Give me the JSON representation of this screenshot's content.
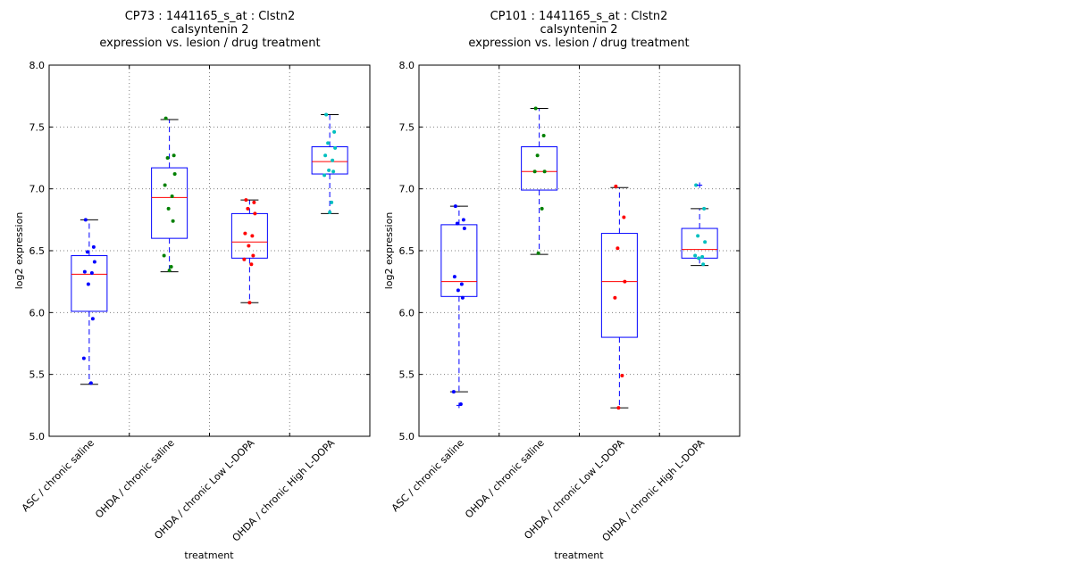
{
  "colors": {
    "box": "#0000ff",
    "median": "#ff0000",
    "whisker": "#0000ff",
    "cap": "#000000",
    "grid": "#808080",
    "frame": "#000000",
    "groups": [
      "#0000ff",
      "#008000",
      "#ff0000",
      "#00bfbf"
    ]
  },
  "chart_data": [
    {
      "type": "box",
      "title": [
        "CP73 : 1441165_s_at : Clstn2",
        "calsyntenin 2",
        "expression vs. lesion / drug treatment"
      ],
      "xlabel": "treatment",
      "ylabel": "log2 expression",
      "ylim": [
        5.0,
        8.0
      ],
      "yticks": [
        "5.0",
        "5.5",
        "6.0",
        "6.5",
        "7.0",
        "7.5",
        "8.0"
      ],
      "grid": true,
      "categories": [
        "ASC / chronic saline",
        "OHDA / chronic saline",
        "OHDA / chronic Low L-DOPA",
        "OHDA / chronic High L-DOPA"
      ],
      "boxes": [
        {
          "q1": 6.01,
          "median": 6.31,
          "q3": 6.46,
          "whisker_low": 5.42,
          "whisker_high": 6.75,
          "outliers": [],
          "points": [
            6.75,
            6.53,
            6.49,
            6.41,
            6.33,
            6.32,
            6.23,
            5.95,
            5.63,
            5.43
          ]
        },
        {
          "q1": 6.6,
          "median": 6.93,
          "q3": 7.17,
          "whisker_low": 6.33,
          "whisker_high": 7.56,
          "outliers": [],
          "points": [
            7.57,
            7.27,
            7.25,
            7.12,
            7.03,
            6.94,
            6.84,
            6.74,
            6.46,
            6.37,
            6.34
          ]
        },
        {
          "q1": 6.44,
          "median": 6.57,
          "q3": 6.8,
          "whisker_low": 6.08,
          "whisker_high": 6.91,
          "outliers": [],
          "points": [
            6.91,
            6.89,
            6.84,
            6.8,
            6.64,
            6.62,
            6.54,
            6.46,
            6.43,
            6.39,
            6.08
          ]
        },
        {
          "q1": 7.12,
          "median": 7.22,
          "q3": 7.34,
          "whisker_low": 6.8,
          "whisker_high": 7.6,
          "outliers": [],
          "points": [
            7.6,
            7.46,
            7.37,
            7.33,
            7.27,
            7.23,
            7.15,
            7.14,
            7.11,
            6.89,
            6.81
          ]
        }
      ]
    },
    {
      "type": "box",
      "title": [
        "CP101 : 1441165_s_at : Clstn2",
        "calsyntenin 2",
        "expression vs. lesion / drug treatment"
      ],
      "xlabel": "treatment",
      "ylabel": "log2 expression",
      "ylim": [
        5.0,
        8.0
      ],
      "yticks": [
        "5.0",
        "5.5",
        "6.0",
        "6.5",
        "7.0",
        "7.5",
        "8.0"
      ],
      "grid": true,
      "categories": [
        "ASC / chronic saline",
        "OHDA / chronic saline",
        "OHDA / chronic Low L-DOPA",
        "OHDA / chronic High L-DOPA"
      ],
      "boxes": [
        {
          "q1": 6.13,
          "median": 6.25,
          "q3": 6.71,
          "whisker_low": 5.36,
          "whisker_high": 6.86,
          "outliers": [
            5.25
          ],
          "points": [
            6.86,
            6.75,
            6.72,
            6.68,
            6.29,
            6.23,
            6.18,
            6.12,
            5.36,
            5.26
          ]
        },
        {
          "q1": 6.99,
          "median": 7.14,
          "q3": 7.34,
          "whisker_low": 6.47,
          "whisker_high": 7.65,
          "outliers": [],
          "points": [
            7.65,
            7.43,
            7.27,
            7.14,
            7.14,
            6.84,
            6.48
          ]
        },
        {
          "q1": 5.8,
          "median": 6.25,
          "q3": 6.64,
          "whisker_low": 5.23,
          "whisker_high": 7.01,
          "outliers": [],
          "points": [
            7.02,
            6.77,
            6.52,
            6.25,
            6.12,
            5.49,
            5.23
          ]
        },
        {
          "q1": 6.44,
          "median": 6.51,
          "q3": 6.68,
          "whisker_low": 6.38,
          "whisker_high": 6.84,
          "outliers": [
            7.03
          ],
          "points": [
            7.03,
            6.84,
            6.62,
            6.57,
            6.46,
            6.45,
            6.44,
            6.39
          ]
        }
      ]
    }
  ]
}
